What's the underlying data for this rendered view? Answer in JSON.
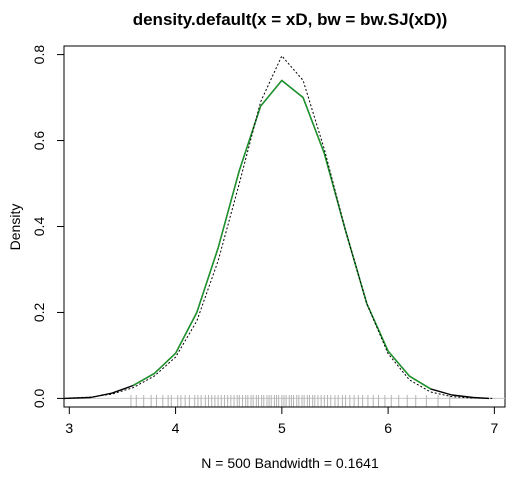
{
  "chart_data": {
    "type": "line",
    "title": "density.default(x = xD, bw = bw.SJ(xD))",
    "xlabel": "N = 500   Bandwidth = 0.1641",
    "ylabel": "Density",
    "xlim": [
      2.95,
      7.1
    ],
    "ylim": [
      -0.02,
      0.82
    ],
    "x_ticks": [
      3,
      4,
      5,
      6,
      7
    ],
    "x_tick_labels": [
      "3",
      "4",
      "5",
      "6",
      "7"
    ],
    "y_ticks": [
      0.0,
      0.2,
      0.4,
      0.6,
      0.8
    ],
    "y_tick_labels": [
      "0.0",
      "0.2",
      "0.4",
      "0.6",
      "0.8"
    ],
    "grid": false,
    "series": [
      {
        "style": "solid",
        "color": "#000000",
        "x": [
          2.95,
          3.2,
          3.4,
          3.6,
          3.8,
          4.0,
          4.2,
          4.4,
          4.6,
          4.8,
          5.0,
          5.2,
          5.4,
          5.6,
          5.8,
          6.0,
          6.2,
          6.4,
          6.6,
          6.8,
          6.95
        ],
        "y": [
          0.0,
          0.002,
          0.012,
          0.03,
          0.058,
          0.105,
          0.2,
          0.35,
          0.53,
          0.68,
          0.74,
          0.7,
          0.57,
          0.39,
          0.22,
          0.11,
          0.052,
          0.022,
          0.008,
          0.002,
          0.0
        ]
      },
      {
        "style": "solid",
        "color": "#1a9a2a",
        "x": [
          3.6,
          3.8,
          4.0,
          4.2,
          4.4,
          4.6,
          4.8,
          5.0,
          5.2,
          5.4,
          5.6,
          5.8,
          6.0,
          6.2,
          6.4
        ],
        "y": [
          0.03,
          0.058,
          0.105,
          0.2,
          0.35,
          0.53,
          0.68,
          0.74,
          0.7,
          0.57,
          0.39,
          0.22,
          0.11,
          0.052,
          0.022
        ]
      },
      {
        "style": "dotted",
        "color": "#000000",
        "x": [
          3.0,
          3.2,
          3.4,
          3.6,
          3.8,
          4.0,
          4.2,
          4.4,
          4.6,
          4.8,
          5.0,
          5.2,
          5.4,
          5.6,
          5.8,
          6.0,
          6.2,
          6.4,
          6.6,
          6.8,
          7.0
        ],
        "y": [
          0.001,
          0.003,
          0.01,
          0.025,
          0.052,
          0.096,
          0.18,
          0.32,
          0.5,
          0.69,
          0.797,
          0.74,
          0.58,
          0.39,
          0.22,
          0.104,
          0.043,
          0.015,
          0.004,
          0.001,
          0.0
        ]
      }
    ],
    "rug": [
      3.58,
      3.63,
      3.7,
      3.77,
      3.82,
      3.88,
      3.93,
      3.96,
      4.02,
      4.05,
      4.09,
      4.13,
      4.18,
      4.21,
      4.24,
      4.28,
      4.31,
      4.34,
      4.37,
      4.4,
      4.43,
      4.46,
      4.49,
      4.52,
      4.55,
      4.58,
      4.6,
      4.63,
      4.66,
      4.68,
      4.71,
      4.73,
      4.76,
      4.78,
      4.81,
      4.83,
      4.86,
      4.88,
      4.9,
      4.93,
      4.95,
      4.97,
      5.0,
      5.02,
      5.04,
      5.07,
      5.09,
      5.11,
      5.14,
      5.16,
      5.19,
      5.21,
      5.24,
      5.26,
      5.29,
      5.31,
      5.34,
      5.37,
      5.4,
      5.43,
      5.46,
      5.5,
      5.53,
      5.57,
      5.6,
      5.64,
      5.68,
      5.72,
      5.76,
      5.81,
      5.86,
      5.91,
      5.97,
      6.03,
      6.1,
      6.18,
      6.26,
      6.36,
      6.47,
      6.58
    ]
  }
}
